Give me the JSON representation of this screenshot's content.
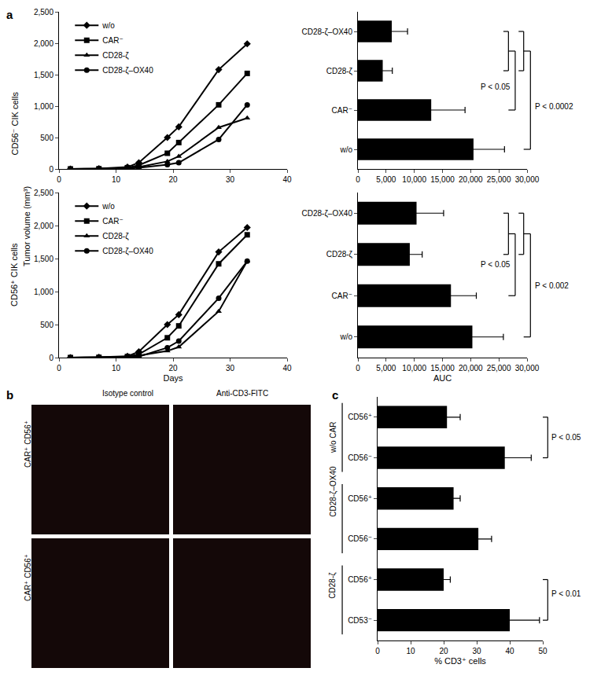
{
  "panel_labels": [
    "a",
    "b",
    "c"
  ],
  "y_title_shared": "Tumor volume (mm³)",
  "chart_data": [
    {
      "type": "line",
      "row_label": "CD56⁻ CIK cells",
      "x": [
        2,
        7,
        12,
        14,
        19,
        21,
        28,
        33
      ],
      "series": [
        {
          "name": "w/o",
          "color": "#000000",
          "marker": "diamond",
          "values": [
            0,
            5,
            30,
            100,
            500,
            670,
            1580,
            1990
          ]
        },
        {
          "name": "CAR⁻",
          "color": "#000000",
          "marker": "square",
          "values": [
            0,
            3,
            20,
            60,
            250,
            420,
            1020,
            1520
          ]
        },
        {
          "name": "CD28-ζ",
          "color": "#000000",
          "marker": "triangle-up",
          "values": [
            0,
            2,
            10,
            30,
            120,
            200,
            660,
            810
          ]
        },
        {
          "name": "CD28-ζ–OX40",
          "color": "#000000",
          "marker": "circle",
          "values": [
            0,
            2,
            5,
            20,
            70,
            100,
            470,
            1020
          ]
        }
      ],
      "xlim": [
        0,
        40
      ],
      "xticks": [
        0,
        10,
        20,
        30,
        40
      ],
      "ylim": [
        0,
        2500
      ],
      "yticks": [
        0,
        500,
        {
          "value": 1000,
          "label": "1,000"
        },
        {
          "value": 1500,
          "label": "1,500"
        },
        {
          "value": 2000,
          "label": "2,000"
        },
        {
          "value": 2500,
          "label": "2,500"
        }
      ],
      "legend": "top-left",
      "grid": false
    },
    {
      "type": "line",
      "row_label": "CD56⁺ CIK cells",
      "x_title": "Days",
      "x": [
        2,
        7,
        12,
        14,
        19,
        21,
        28,
        33
      ],
      "series": [
        {
          "name": "w/o",
          "color": "#000000",
          "marker": "diamond",
          "values": [
            0,
            5,
            20,
            90,
            500,
            650,
            1600,
            1970
          ]
        },
        {
          "name": "CAR⁻",
          "color": "#000000",
          "marker": "square",
          "values": [
            0,
            3,
            15,
            50,
            300,
            480,
            1420,
            1860
          ]
        },
        {
          "name": "CD28-ζ",
          "color": "#000000",
          "marker": "triangle-up",
          "values": [
            0,
            2,
            10,
            30,
            100,
            160,
            700,
            1460
          ]
        },
        {
          "name": "CD28-ζ–OX40",
          "color": "#000000",
          "marker": "circle",
          "values": [
            0,
            2,
            5,
            15,
            150,
            250,
            900,
            1460
          ]
        }
      ],
      "xlim": [
        0,
        40
      ],
      "xticks": [
        0,
        10,
        20,
        30,
        40
      ],
      "ylim": [
        0,
        2500
      ],
      "yticks": [
        0,
        500,
        {
          "value": 1000,
          "label": "1,000"
        },
        {
          "value": 1500,
          "label": "1,500"
        },
        {
          "value": 2000,
          "label": "2,000"
        },
        {
          "value": 2500,
          "label": "2,500"
        }
      ],
      "legend": "top-left",
      "grid": false
    },
    {
      "type": "bar",
      "orientation": "horizontal",
      "color": "#000000",
      "categories": [
        "CD28-ζ–OX40",
        "CD28-ζ",
        "CAR⁻",
        "w/o"
      ],
      "values": [
        6000,
        4400,
        13000,
        20500
      ],
      "errors": [
        2800,
        1700,
        6000,
        5500
      ],
      "xlim": [
        0,
        30000
      ],
      "xticks": [
        0,
        {
          "value": 5000,
          "label": "5,000"
        },
        {
          "value": 10000,
          "label": "10,000"
        },
        {
          "value": 15000,
          "label": "15,000"
        },
        {
          "value": 20000,
          "label": "20,000"
        },
        {
          "value": 25000,
          "label": "25,000"
        },
        {
          "value": 30000,
          "label": "30,000"
        }
      ],
      "comparisons": [
        {
          "label": "P < 0.05",
          "left": [
            "CD28-ζ–OX40",
            "CD28-ζ"
          ],
          "right": [
            "CAR⁻"
          ]
        },
        {
          "label": "P < 0.0002",
          "left": [
            "CD28-ζ–OX40",
            "CD28-ζ"
          ],
          "right": [
            "w/o"
          ]
        }
      ],
      "grid": false
    },
    {
      "type": "bar",
      "orientation": "horizontal",
      "color": "#000000",
      "x_title": "AUC",
      "categories": [
        "CD28-ζ–OX40",
        "CD28-ζ",
        "CAR⁻",
        "w/o"
      ],
      "values": [
        10400,
        9200,
        16500,
        20300
      ],
      "errors": [
        4800,
        2200,
        4500,
        5500
      ],
      "xlim": [
        0,
        30000
      ],
      "xticks": [
        0,
        {
          "value": 5000,
          "label": "5,000"
        },
        {
          "value": 10000,
          "label": "10,000"
        },
        {
          "value": 15000,
          "label": "15,000"
        },
        {
          "value": 20000,
          "label": "20,000"
        },
        {
          "value": 25000,
          "label": "25,000"
        },
        {
          "value": 30000,
          "label": "30,000"
        }
      ],
      "comparisons": [
        {
          "label": "P < 0.05",
          "left": [
            "CD28-ζ–OX40",
            "CD28-ζ"
          ],
          "right": [
            "CAR⁻"
          ]
        },
        {
          "label": "P < 0.002",
          "left": [
            "CD28-ζ–OX40",
            "CD28-ζ"
          ],
          "right": [
            "w/o"
          ]
        }
      ],
      "grid": false
    },
    {
      "type": "bar",
      "orientation": "horizontal",
      "color": "#000000",
      "x_title": "% CD3⁺ cells",
      "categories": [
        "CD56⁺",
        "CD56⁻",
        "CD56⁺",
        "CD56⁻",
        "CD56⁺",
        "CD53⁻"
      ],
      "groups": [
        "w/o CAR",
        "w/o CAR",
        "CD28-ζ–OX40",
        "CD28-ζ–OX40",
        "CD28-ζ",
        "CD28-ζ"
      ],
      "values": [
        21,
        38.5,
        23,
        30.5,
        20,
        40
      ],
      "errors": [
        4,
        8,
        2,
        4,
        2,
        9
      ],
      "xlim": [
        0,
        50
      ],
      "xticks": [
        0,
        10,
        20,
        30,
        40,
        50
      ],
      "comparisons": [
        {
          "group": "w/o CAR",
          "label": "P < 0.05"
        },
        {
          "group": "CD28-ζ",
          "label": "P < 0.01"
        }
      ],
      "grid": false
    }
  ],
  "micrographs": {
    "columns": [
      "Isotype control",
      "Anti-CD3-FITC"
    ],
    "rows": [
      "CAR⁺ CD56⁺",
      "CAR⁺ CD56⁺"
    ]
  }
}
